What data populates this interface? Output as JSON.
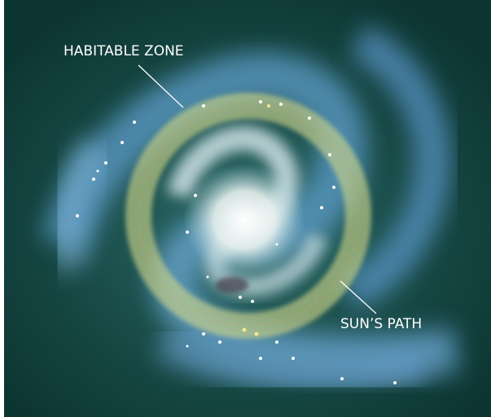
{
  "labels": {
    "habitable_zone": "HABITABLE ZONE",
    "suns_path": "SUN’S PATH"
  }
}
